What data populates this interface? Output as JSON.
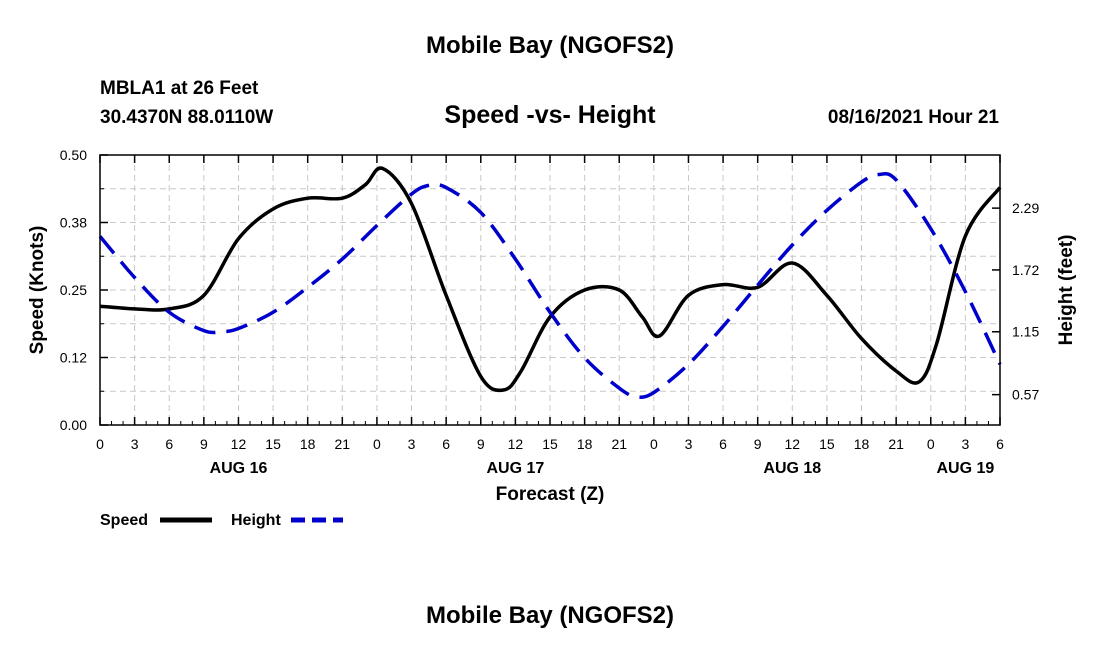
{
  "header": {
    "title": "Mobile Bay (NGOFS2)",
    "station": "MBLA1 at 26 Feet",
    "coords": "30.4370N  88.0110W",
    "subtitle": "Speed -vs- Height",
    "datetime": "08/16/2021 Hour 21"
  },
  "footer": {
    "title": "Mobile Bay (NGOFS2)"
  },
  "colors": {
    "speed": "#000000",
    "height": "#0000cc",
    "grid": "#c8c8c8"
  },
  "chart_data": {
    "type": "line",
    "title": "Speed -vs- Height",
    "xlabel": "Forecast (Z)",
    "ylabel": "Speed (Knots)",
    "y2label": "Height (feet)",
    "x_hours_range": [
      0,
      78
    ],
    "ylim": [
      0,
      0.5
    ],
    "y2lim": [
      0.29,
      2.78
    ],
    "yticks": [
      "0.00",
      "0.12",
      "0.25",
      "0.38",
      "0.50"
    ],
    "y2ticks": [
      "0.57",
      "1.15",
      "1.72",
      "2.29"
    ],
    "xtick_labels": [
      "0",
      "3",
      "6",
      "9",
      "12",
      "15",
      "18",
      "21",
      "0",
      "3",
      "6",
      "9",
      "12",
      "15",
      "18",
      "21",
      "0",
      "3",
      "6",
      "9",
      "12",
      "15",
      "18",
      "21",
      "0",
      "3",
      "6"
    ],
    "day_labels": [
      {
        "hour": 12,
        "label": "AUG 16"
      },
      {
        "hour": 36,
        "label": "AUG 17"
      },
      {
        "hour": 60,
        "label": "AUG 18"
      },
      {
        "hour": 75,
        "label": "AUG 19"
      }
    ],
    "grid": true,
    "legend_position": "bottom-left",
    "series": [
      {
        "name": "Speed",
        "axis": "left",
        "style": "solid",
        "x": [
          0,
          3,
          6,
          9,
          12,
          15,
          18,
          21,
          23,
          24.5,
          27,
          30,
          33,
          35,
          36.5,
          39,
          42,
          45,
          47,
          48.5,
          51,
          54,
          57,
          60,
          63,
          66,
          69,
          71,
          72.5,
          75,
          78
        ],
        "y": [
          0.22,
          0.215,
          0.215,
          0.24,
          0.345,
          0.4,
          0.42,
          0.42,
          0.445,
          0.475,
          0.41,
          0.24,
          0.09,
          0.065,
          0.1,
          0.2,
          0.25,
          0.25,
          0.2,
          0.165,
          0.24,
          0.26,
          0.255,
          0.3,
          0.24,
          0.16,
          0.1,
          0.08,
          0.15,
          0.35,
          0.44
        ]
      },
      {
        "name": "Height",
        "axis": "right",
        "style": "dashed",
        "x": [
          0,
          3,
          6,
          9,
          10.5,
          12,
          15,
          18,
          21,
          24,
          27,
          28.5,
          30,
          33,
          36,
          39,
          42,
          45,
          46.5,
          48,
          51,
          54,
          57,
          60,
          63,
          66,
          67.5,
          69,
          72,
          75,
          78
        ],
        "y": [
          2.03,
          1.65,
          1.33,
          1.16,
          1.15,
          1.18,
          1.33,
          1.56,
          1.82,
          2.13,
          2.42,
          2.5,
          2.48,
          2.25,
          1.82,
          1.33,
          0.91,
          0.63,
          0.55,
          0.59,
          0.85,
          1.2,
          1.58,
          1.95,
          2.27,
          2.53,
          2.6,
          2.55,
          2.1,
          1.52,
          0.85
        ]
      }
    ]
  },
  "legend": [
    {
      "label": "Speed",
      "color": "#000000",
      "dash": ""
    },
    {
      "label": "Height",
      "color": "#0000cc",
      "dash": "14 7"
    }
  ]
}
